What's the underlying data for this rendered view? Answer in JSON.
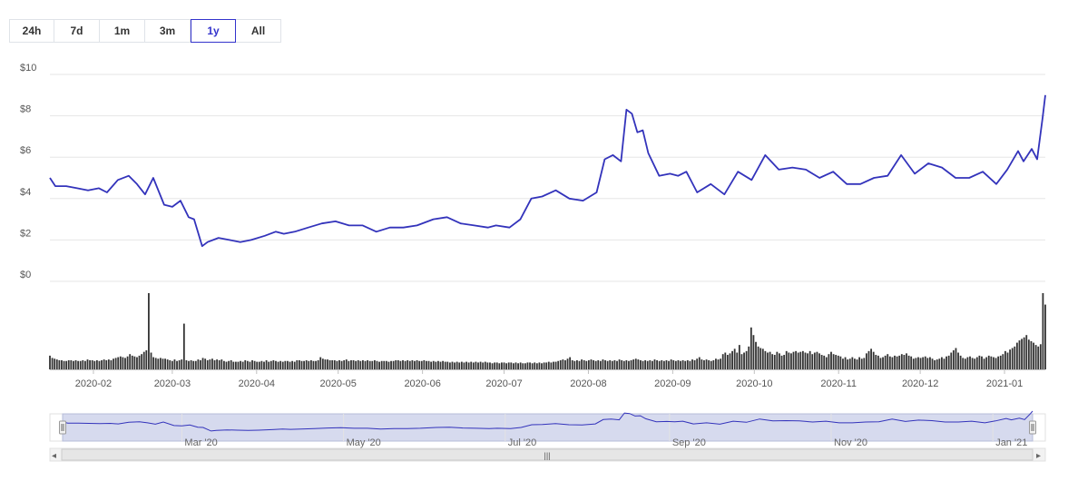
{
  "range_selector": {
    "buttons": [
      "24h",
      "7d",
      "1m",
      "3m",
      "1y",
      "All"
    ],
    "active": "1y"
  },
  "colors": {
    "line": "#3333bb",
    "volume": "#333333",
    "grid": "#e6e6e6",
    "navigator_fill": "#c8cde8",
    "navigator_border": "#b6bcd8"
  },
  "chart_data": {
    "type": "line",
    "title": "",
    "y_axis": {
      "min": 0,
      "max": 10,
      "ticks": [
        "$0",
        "$2",
        "$4",
        "$6",
        "$8",
        "$10"
      ]
    },
    "x_axis": {
      "min": "2020-01-16",
      "max": "2021-01-16",
      "ticks": [
        "2020-02",
        "2020-03",
        "2020-04",
        "2020-05",
        "2020-06",
        "2020-07",
        "2020-08",
        "2020-09",
        "2020-10",
        "2020-11",
        "2020-12",
        "2021-01"
      ]
    },
    "grid": true,
    "price_series": {
      "dates": [
        "2020-01-16",
        "2020-01-18",
        "2020-01-22",
        "2020-01-26",
        "2020-01-30",
        "2020-02-03",
        "2020-02-06",
        "2020-02-10",
        "2020-02-14",
        "2020-02-17",
        "2020-02-20",
        "2020-02-23",
        "2020-02-27",
        "2020-03-01",
        "2020-03-04",
        "2020-03-07",
        "2020-03-09",
        "2020-03-12",
        "2020-03-14",
        "2020-03-18",
        "2020-03-22",
        "2020-03-26",
        "2020-03-30",
        "2020-04-04",
        "2020-04-08",
        "2020-04-11",
        "2020-04-15",
        "2020-04-20",
        "2020-04-25",
        "2020-04-30",
        "2020-05-05",
        "2020-05-10",
        "2020-05-15",
        "2020-05-20",
        "2020-05-25",
        "2020-05-30",
        "2020-06-05",
        "2020-06-10",
        "2020-06-15",
        "2020-06-20",
        "2020-06-25",
        "2020-06-28",
        "2020-07-03",
        "2020-07-07",
        "2020-07-11",
        "2020-07-15",
        "2020-07-20",
        "2020-07-25",
        "2020-07-30",
        "2020-08-04",
        "2020-08-07",
        "2020-08-10",
        "2020-08-13",
        "2020-08-15",
        "2020-08-17",
        "2020-08-19",
        "2020-08-21",
        "2020-08-23",
        "2020-08-27",
        "2020-08-31",
        "2020-09-03",
        "2020-09-06",
        "2020-09-10",
        "2020-09-15",
        "2020-09-20",
        "2020-09-25",
        "2020-09-30",
        "2020-10-05",
        "2020-10-10",
        "2020-10-15",
        "2020-10-20",
        "2020-10-25",
        "2020-10-30",
        "2020-11-04",
        "2020-11-09",
        "2020-11-14",
        "2020-11-19",
        "2020-11-24",
        "2020-11-29",
        "2020-12-04",
        "2020-12-09",
        "2020-12-14",
        "2020-12-19",
        "2020-12-24",
        "2020-12-29",
        "2021-01-02",
        "2021-01-06",
        "2021-01-08",
        "2021-01-11",
        "2021-01-13",
        "2021-01-15",
        "2021-01-16"
      ],
      "values": [
        5.0,
        4.6,
        4.6,
        4.5,
        4.4,
        4.5,
        4.3,
        4.9,
        5.1,
        4.7,
        4.2,
        5.0,
        3.7,
        3.6,
        3.9,
        3.1,
        3.0,
        1.7,
        1.9,
        2.1,
        2.0,
        1.9,
        2.0,
        2.2,
        2.4,
        2.3,
        2.4,
        2.6,
        2.8,
        2.9,
        2.7,
        2.7,
        2.4,
        2.6,
        2.6,
        2.7,
        3.0,
        3.1,
        2.8,
        2.7,
        2.6,
        2.7,
        2.6,
        3.0,
        4.0,
        4.1,
        4.4,
        4.0,
        3.9,
        4.3,
        5.9,
        6.1,
        5.8,
        8.3,
        8.1,
        7.2,
        7.3,
        6.2,
        5.1,
        5.2,
        5.1,
        5.3,
        4.3,
        4.7,
        4.2,
        5.3,
        4.9,
        6.1,
        5.4,
        5.5,
        5.4,
        5.0,
        5.3,
        4.7,
        4.7,
        5.0,
        5.1,
        6.1,
        5.2,
        5.7,
        5.5,
        5.0,
        5.0,
        5.3,
        4.7,
        5.4,
        6.3,
        5.8,
        6.4,
        5.9,
        7.9,
        9.0
      ]
    },
    "volume_series": {
      "start": "2020-01-16",
      "end": "2021-01-16",
      "values": [
        0.18,
        0.15,
        0.14,
        0.13,
        0.12,
        0.12,
        0.11,
        0.11,
        0.12,
        0.12,
        0.11,
        0.12,
        0.11,
        0.11,
        0.12,
        0.11,
        0.13,
        0.12,
        0.12,
        0.11,
        0.12,
        0.11,
        0.12,
        0.13,
        0.12,
        0.13,
        0.12,
        0.14,
        0.15,
        0.16,
        0.17,
        0.16,
        0.15,
        0.17,
        0.2,
        0.18,
        0.17,
        0.16,
        0.18,
        0.2,
        0.23,
        0.25,
        1.0,
        0.22,
        0.16,
        0.15,
        0.14,
        0.15,
        0.14,
        0.14,
        0.13,
        0.12,
        0.11,
        0.13,
        0.11,
        0.12,
        0.13,
        0.6,
        0.12,
        0.11,
        0.12,
        0.11,
        0.11,
        0.13,
        0.12,
        0.15,
        0.14,
        0.12,
        0.13,
        0.14,
        0.12,
        0.13,
        0.12,
        0.13,
        0.11,
        0.1,
        0.11,
        0.12,
        0.1,
        0.1,
        0.1,
        0.11,
        0.1,
        0.12,
        0.11,
        0.1,
        0.12,
        0.11,
        0.1,
        0.1,
        0.11,
        0.1,
        0.12,
        0.1,
        0.11,
        0.12,
        0.11,
        0.1,
        0.11,
        0.1,
        0.11,
        0.11,
        0.1,
        0.11,
        0.1,
        0.12,
        0.12,
        0.11,
        0.11,
        0.12,
        0.11,
        0.12,
        0.11,
        0.11,
        0.12,
        0.16,
        0.14,
        0.13,
        0.13,
        0.12,
        0.12,
        0.12,
        0.11,
        0.12,
        0.11,
        0.12,
        0.13,
        0.11,
        0.12,
        0.12,
        0.11,
        0.12,
        0.11,
        0.12,
        0.11,
        0.12,
        0.11,
        0.11,
        0.12,
        0.11,
        0.1,
        0.11,
        0.11,
        0.11,
        0.1,
        0.11,
        0.11,
        0.12,
        0.12,
        0.11,
        0.12,
        0.11,
        0.12,
        0.11,
        0.12,
        0.11,
        0.12,
        0.11,
        0.11,
        0.12,
        0.11,
        0.11,
        0.1,
        0.11,
        0.1,
        0.11,
        0.1,
        0.11,
        0.1,
        0.1,
        0.09,
        0.1,
        0.09,
        0.1,
        0.09,
        0.1,
        0.09,
        0.1,
        0.09,
        0.1,
        0.09,
        0.1,
        0.09,
        0.1,
        0.09,
        0.1,
        0.09,
        0.09,
        0.08,
        0.09,
        0.09,
        0.08,
        0.09,
        0.09,
        0.08,
        0.09,
        0.09,
        0.08,
        0.09,
        0.08,
        0.09,
        0.08,
        0.08,
        0.09,
        0.09,
        0.08,
        0.09,
        0.08,
        0.09,
        0.08,
        0.09,
        0.09,
        0.1,
        0.09,
        0.1,
        0.1,
        0.11,
        0.12,
        0.13,
        0.12,
        0.14,
        0.16,
        0.12,
        0.11,
        0.12,
        0.11,
        0.13,
        0.12,
        0.11,
        0.12,
        0.13,
        0.12,
        0.11,
        0.12,
        0.11,
        0.13,
        0.12,
        0.11,
        0.12,
        0.11,
        0.12,
        0.11,
        0.13,
        0.12,
        0.11,
        0.12,
        0.11,
        0.12,
        0.13,
        0.14,
        0.13,
        0.12,
        0.11,
        0.12,
        0.11,
        0.12,
        0.11,
        0.13,
        0.12,
        0.11,
        0.12,
        0.11,
        0.12,
        0.11,
        0.13,
        0.12,
        0.11,
        0.12,
        0.11,
        0.12,
        0.11,
        0.12,
        0.11,
        0.13,
        0.12,
        0.14,
        0.16,
        0.13,
        0.12,
        0.13,
        0.12,
        0.11,
        0.12,
        0.14,
        0.13,
        0.14,
        0.2,
        0.22,
        0.19,
        0.21,
        0.24,
        0.27,
        0.22,
        0.32,
        0.2,
        0.22,
        0.24,
        0.3,
        0.55,
        0.45,
        0.36,
        0.3,
        0.28,
        0.27,
        0.24,
        0.22,
        0.23,
        0.2,
        0.19,
        0.23,
        0.21,
        0.18,
        0.19,
        0.24,
        0.22,
        0.21,
        0.23,
        0.24,
        0.22,
        0.23,
        0.24,
        0.22,
        0.21,
        0.24,
        0.2,
        0.22,
        0.23,
        0.21,
        0.19,
        0.18,
        0.16,
        0.2,
        0.23,
        0.2,
        0.19,
        0.18,
        0.17,
        0.14,
        0.16,
        0.13,
        0.14,
        0.16,
        0.14,
        0.13,
        0.16,
        0.14,
        0.15,
        0.21,
        0.24,
        0.27,
        0.23,
        0.19,
        0.18,
        0.15,
        0.16,
        0.18,
        0.2,
        0.17,
        0.16,
        0.18,
        0.17,
        0.18,
        0.2,
        0.19,
        0.21,
        0.18,
        0.17,
        0.14,
        0.15,
        0.16,
        0.15,
        0.16,
        0.17,
        0.15,
        0.16,
        0.14,
        0.12,
        0.13,
        0.14,
        0.16,
        0.14,
        0.17,
        0.18,
        0.22,
        0.25,
        0.28,
        0.22,
        0.18,
        0.15,
        0.14,
        0.16,
        0.17,
        0.15,
        0.14,
        0.16,
        0.18,
        0.17,
        0.14,
        0.16,
        0.18,
        0.17,
        0.16,
        0.15,
        0.17,
        0.18,
        0.2,
        0.24,
        0.22,
        0.26,
        0.28,
        0.3,
        0.35,
        0.38,
        0.4,
        0.42,
        0.45,
        0.39,
        0.37,
        0.35,
        0.32,
        0.3,
        0.33,
        1.0,
        0.85
      ]
    }
  },
  "navigator": {
    "labels": [
      "Mar '20",
      "May '20",
      "Jul '20",
      "Sep '20",
      "Nov '20",
      "Jan '21"
    ],
    "scroll_grip": "|||",
    "left_arrow": "◂",
    "right_arrow": "▸"
  }
}
